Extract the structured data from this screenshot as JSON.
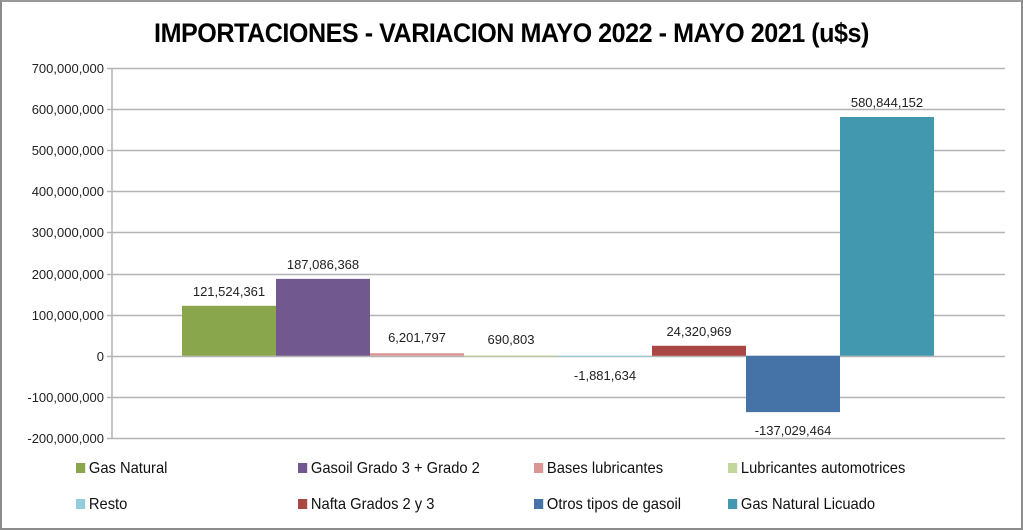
{
  "chart_data": {
    "type": "bar",
    "title": "IMPORTACIONES - VARIACION MAYO 2022 - MAYO 2021 (u$s)",
    "xlabel": "",
    "ylabel": "",
    "ylim": [
      -200000000,
      700000000
    ],
    "yticks": [
      700000000,
      600000000,
      500000000,
      400000000,
      300000000,
      200000000,
      100000000,
      0,
      -100000000,
      -200000000
    ],
    "ytick_labels": [
      "700,000,000",
      "600,000,000",
      "500,000,000",
      "400,000,000",
      "300,000,000",
      "200,000,000",
      "100,000,000",
      "0",
      "-100,000,000",
      "-200,000,000"
    ],
    "grid": true,
    "legend_position": "bottom",
    "series": [
      {
        "name": "Gas Natural",
        "value": 121524361,
        "label": "121,524,361",
        "color": "#8AA64D"
      },
      {
        "name": "Gasoil Grado 3 + Grado 2",
        "value": 187086368,
        "label": "187,086,368",
        "color": "#71588F"
      },
      {
        "name": "Bases lubricantes",
        "value": 6201797,
        "label": "6,201,797",
        "color": "#D99694"
      },
      {
        "name": "Lubricantes automotrices",
        "value": 690803,
        "label": "690,803",
        "color": "#C3D69B"
      },
      {
        "name": "Resto",
        "value": -1881634,
        "label": "-1,881,634",
        "color": "#93CDDD"
      },
      {
        "name": "Nafta Grados 2 y 3",
        "value": 24320969,
        "label": "24,320,969",
        "color": "#AA4643"
      },
      {
        "name": "Otros tipos de gasoil",
        "value": -137029464,
        "label": "-137,029,464",
        "color": "#4572A7"
      },
      {
        "name": "Gas Natural Licuado",
        "value": 580844152,
        "label": "580,844,152",
        "color": "#4198AF"
      }
    ]
  }
}
